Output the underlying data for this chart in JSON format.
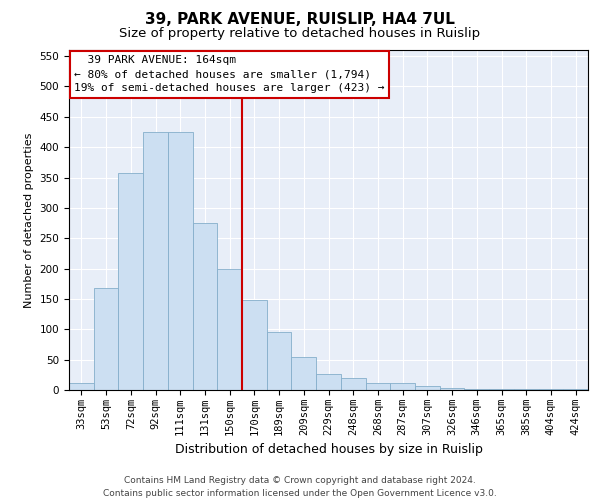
{
  "title1": "39, PARK AVENUE, RUISLIP, HA4 7UL",
  "title2": "Size of property relative to detached houses in Ruislip",
  "xlabel": "Distribution of detached houses by size in Ruislip",
  "ylabel": "Number of detached properties",
  "categories": [
    "33sqm",
    "53sqm",
    "72sqm",
    "92sqm",
    "111sqm",
    "131sqm",
    "150sqm",
    "170sqm",
    "189sqm",
    "209sqm",
    "229sqm",
    "248sqm",
    "268sqm",
    "287sqm",
    "307sqm",
    "326sqm",
    "346sqm",
    "365sqm",
    "385sqm",
    "404sqm",
    "424sqm"
  ],
  "values": [
    12,
    168,
    357,
    425,
    425,
    275,
    200,
    148,
    96,
    55,
    27,
    20,
    11,
    11,
    6,
    4,
    2,
    2,
    1,
    1,
    1
  ],
  "bar_color": "#ccdff2",
  "bar_edge_color": "#85aecb",
  "vline_color": "#cc0000",
  "annotation_text": "  39 PARK AVENUE: 164sqm  \n← 80% of detached houses are smaller (1,794)\n19% of semi-detached houses are larger (423) →",
  "annotation_box_color": "#ffffff",
  "annotation_box_edge": "#cc0000",
  "ylim": [
    0,
    560
  ],
  "yticks": [
    0,
    50,
    100,
    150,
    200,
    250,
    300,
    350,
    400,
    450,
    500,
    550
  ],
  "bg_color": "#e8eef8",
  "grid_color": "#ffffff",
  "footer": "Contains HM Land Registry data © Crown copyright and database right 2024.\nContains public sector information licensed under the Open Government Licence v3.0.",
  "title1_fontsize": 11,
  "title2_fontsize": 9.5,
  "xlabel_fontsize": 9,
  "ylabel_fontsize": 8,
  "tick_fontsize": 7.5,
  "annotation_fontsize": 8,
  "footer_fontsize": 6.5
}
